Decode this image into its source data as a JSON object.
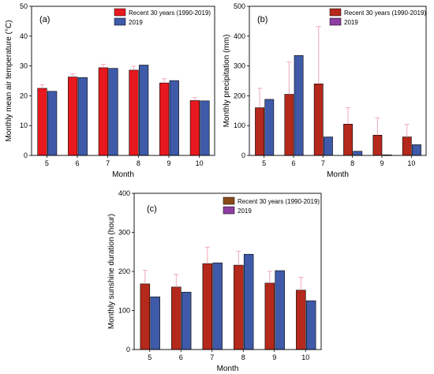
{
  "colors": {
    "recent_fill_a": "#e8191e",
    "recent_fill_b": "#b5281c",
    "recent_fill_c": "#b5281c",
    "recent_legend_c": "#8a4a1a",
    "y2019_fill_a": "#3f5aa8",
    "y2019_fill_b": "#3f5aa8",
    "y2019_fill_c": "#3f5aa8",
    "y2019_legend_b": "#8e3ea0",
    "y2019_legend_c": "#8e3ea0",
    "error_bar": "#f0a8b8",
    "axis": "#000000"
  },
  "chart_data": [
    {
      "panel_label": "(a)",
      "type": "bar",
      "categories": [
        "5",
        "6",
        "7",
        "8",
        "9",
        "10"
      ],
      "xlabel": "Month",
      "ylabel": "Monthly mean air temperature (°C)",
      "ylim": [
        0,
        50
      ],
      "yticks": [
        "0",
        "10",
        "20",
        "30",
        "40",
        "50"
      ],
      "legend_position": "top-right",
      "series": [
        {
          "name": "Recent 30 years (1990-2019)",
          "values": [
            22.5,
            26.3,
            29.4,
            28.6,
            24.3,
            18.4
          ],
          "error": [
            1.2,
            1.0,
            1.1,
            1.3,
            1.4,
            1.0
          ]
        },
        {
          "name": "2019",
          "values": [
            21.5,
            26.1,
            29.2,
            30.3,
            25.1,
            18.3
          ]
        }
      ]
    },
    {
      "panel_label": "(b)",
      "type": "bar",
      "categories": [
        "5",
        "6",
        "7",
        "8",
        "9",
        "10"
      ],
      "xlabel": "Month",
      "ylabel": "Monthly precipitation (mm)",
      "ylim": [
        0,
        500
      ],
      "yticks": [
        "0",
        "100",
        "200",
        "300",
        "400",
        "500"
      ],
      "legend_position": "top-right",
      "series": [
        {
          "name": "Recent 30 years (1990-2019)",
          "values": [
            160,
            205,
            240,
            105,
            68,
            62
          ],
          "error": [
            65,
            108,
            192,
            55,
            58,
            42
          ]
        },
        {
          "name": "2019",
          "values": [
            188,
            335,
            62,
            14,
            2,
            36
          ]
        }
      ]
    },
    {
      "panel_label": "(c)",
      "type": "bar",
      "categories": [
        "5",
        "6",
        "7",
        "8",
        "9",
        "10"
      ],
      "xlabel": "Month",
      "ylabel": "Monthly sunshine duration (hour)",
      "ylim": [
        0,
        400
      ],
      "yticks": [
        "0",
        "100",
        "200",
        "300",
        "400"
      ],
      "legend_position": "top-left",
      "series": [
        {
          "name": "Recent 30 years (1990-2019)",
          "values": [
            168,
            160,
            220,
            216,
            170,
            152
          ],
          "error": [
            35,
            32,
            42,
            36,
            30,
            33
          ]
        },
        {
          "name": "2019",
          "values": [
            135,
            147,
            222,
            244,
            202,
            125
          ]
        }
      ]
    }
  ]
}
